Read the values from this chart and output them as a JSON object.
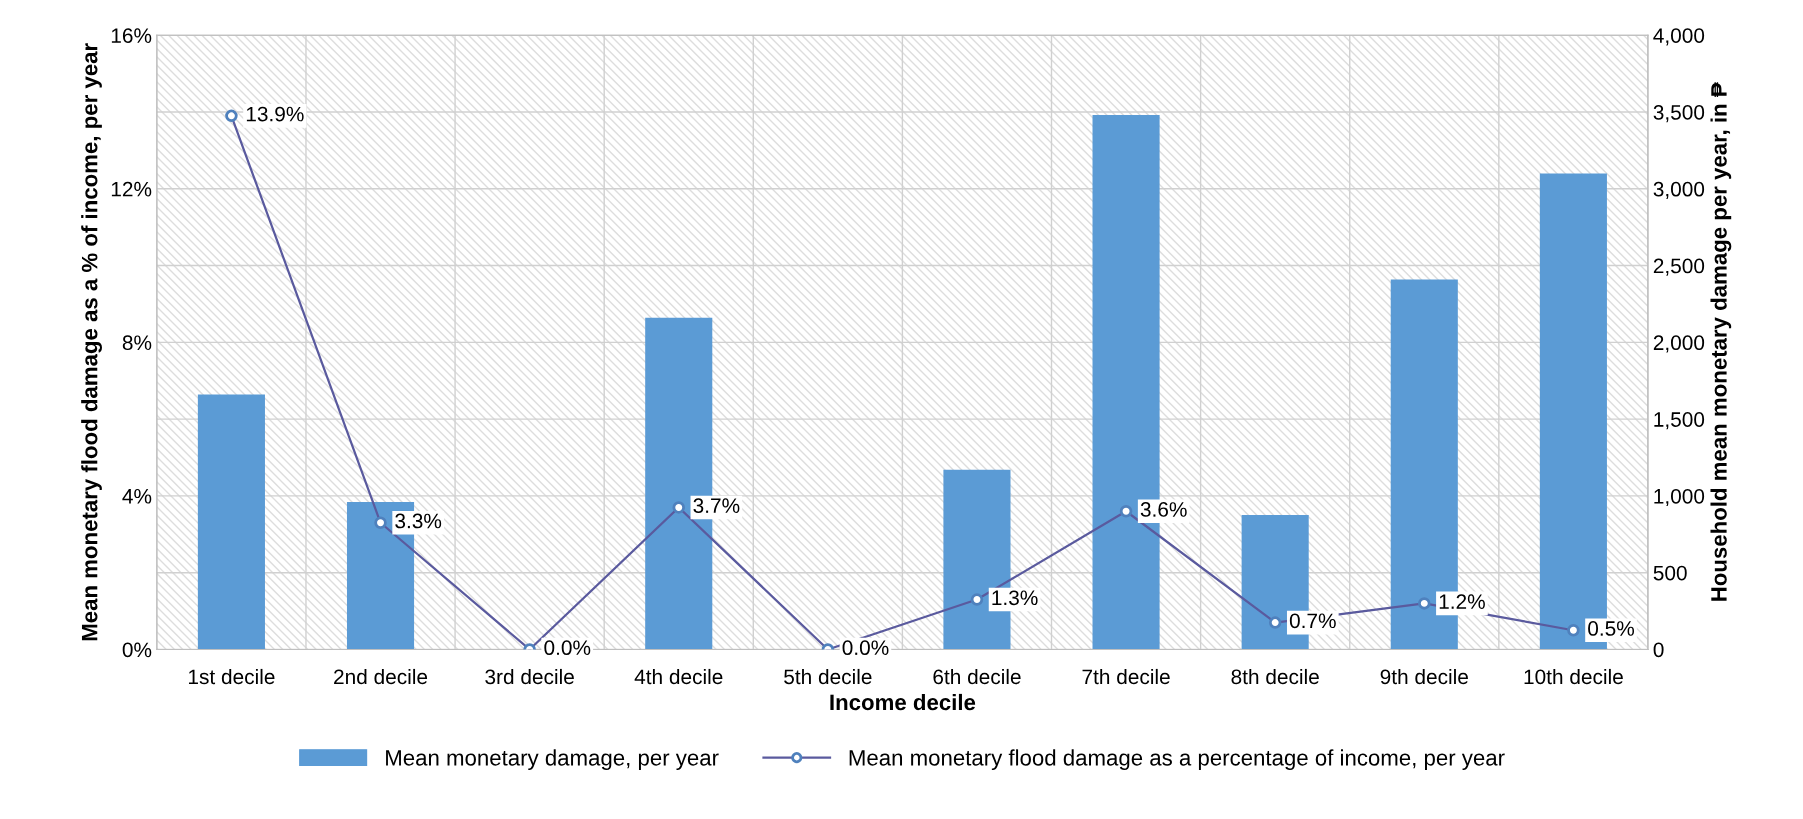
{
  "chart_data": {
    "type": "bar",
    "xlabel": "Income decile",
    "ylabel": "Mean monetary flood damage as a % of income, per year",
    "y2label": "Household mean monetary damage per year, in ₱",
    "categories": [
      "1st decile",
      "2nd decile",
      "3rd decile",
      "4th decile",
      "5th decile",
      "6th decile",
      "7th decile",
      "8th decile",
      "9th decile",
      "10th decile"
    ],
    "series": [
      {
        "name": "Mean monetary damage, per year",
        "axis": "y2",
        "color": "#5b9bd5",
        "values": [
          1660,
          960,
          0,
          2160,
          0,
          1170,
          3480,
          875,
          2410,
          3100
        ]
      },
      {
        "name": "Mean monetary flood damage as a percentage of income, per year",
        "type": "line",
        "axis": "y",
        "color": "#5a5a9e",
        "marker": "circle",
        "values": [
          13.9,
          3.3,
          0.0,
          3.7,
          0.0,
          1.3,
          3.6,
          0.7,
          1.2,
          0.5
        ],
        "value_labels": [
          "13.9%",
          "3.3%",
          "0.0%",
          "3.7%",
          "0.0%",
          "1.3%",
          "3.6%",
          "0.7%",
          "1.2%",
          "0.5%"
        ]
      }
    ],
    "ylim": [
      0,
      16
    ],
    "yticks": [
      {
        "value": 0,
        "label": "0%"
      },
      {
        "value": 4,
        "label": "4%"
      },
      {
        "value": 8,
        "label": "8%"
      },
      {
        "value": 12,
        "label": "12%"
      },
      {
        "value": 16,
        "label": "16%"
      }
    ],
    "y2lim": [
      0,
      4000
    ],
    "y2ticks": [
      0,
      500,
      {
        "value": 1000,
        "label": "1,000"
      },
      {
        "value": 1500,
        "label": "1,500"
      },
      {
        "value": 2000,
        "label": "2,000"
      },
      {
        "value": 2500,
        "label": "2,500"
      },
      {
        "value": 3000,
        "label": "3,000"
      },
      {
        "value": 3500,
        "label": "3,500"
      },
      {
        "value": 4000,
        "label": "4,000"
      }
    ],
    "grid": true,
    "legend": "bottom"
  }
}
